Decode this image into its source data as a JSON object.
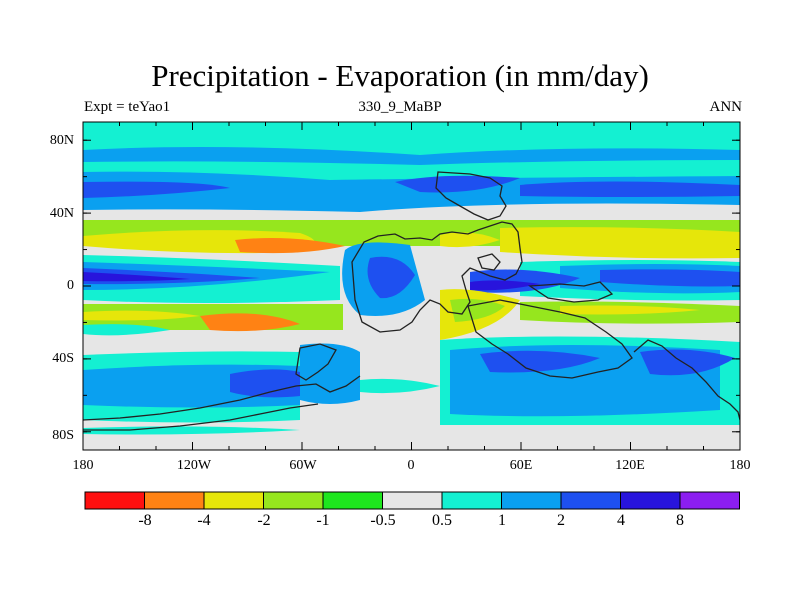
{
  "title": "Precipitation - Evaporation (in mm/day)",
  "subtitle_left": "Expt = teYao1",
  "subtitle_center": "330_9_MaBP",
  "subtitle_right": "ANN",
  "lat_ticks": [
    "80N",
    "40N",
    "0",
    "40S",
    "80S"
  ],
  "lon_ticks": [
    "180",
    "120W",
    "60W",
    "0",
    "60E",
    "120E",
    "180"
  ],
  "colorbar": {
    "colors": [
      "#ff1010",
      "#ff8214",
      "#e6e60a",
      "#96e61e",
      "#1ee61e",
      "#e6e6e6",
      "#14f0d2",
      "#0aa0f0",
      "#1e50f0",
      "#2814dc",
      "#8c1ef0"
    ],
    "labels": [
      "-8",
      "-4",
      "-2",
      "-1",
      "-0.5",
      "0.5",
      "1",
      "2",
      "4",
      "8"
    ]
  },
  "chart_data": {
    "type": "heatmap",
    "title": "Precipitation - Evaporation (in mm/day)",
    "variable": "P-E",
    "units": "mm/day",
    "x_range": [
      -180,
      180
    ],
    "y_range": [
      -90,
      90
    ],
    "levels": [
      -8,
      -4,
      -2,
      -1,
      -0.5,
      0.5,
      1,
      2,
      4,
      8
    ],
    "zonal_bands": [
      {
        "lat": [
          70,
          90
        ],
        "category": "0.5 to 1"
      },
      {
        "lat": [
          45,
          60
        ],
        "category": "2 to 4"
      },
      {
        "lat": [
          20,
          35
        ],
        "category": "-1 to -4"
      },
      {
        "lat": [
          -5,
          10
        ],
        "category": "2 to 8"
      },
      {
        "lat": [
          -35,
          -15
        ],
        "category": "-1 to -4"
      },
      {
        "lat": [
          -70,
          -45
        ],
        "category": "1 to 4"
      }
    ]
  }
}
